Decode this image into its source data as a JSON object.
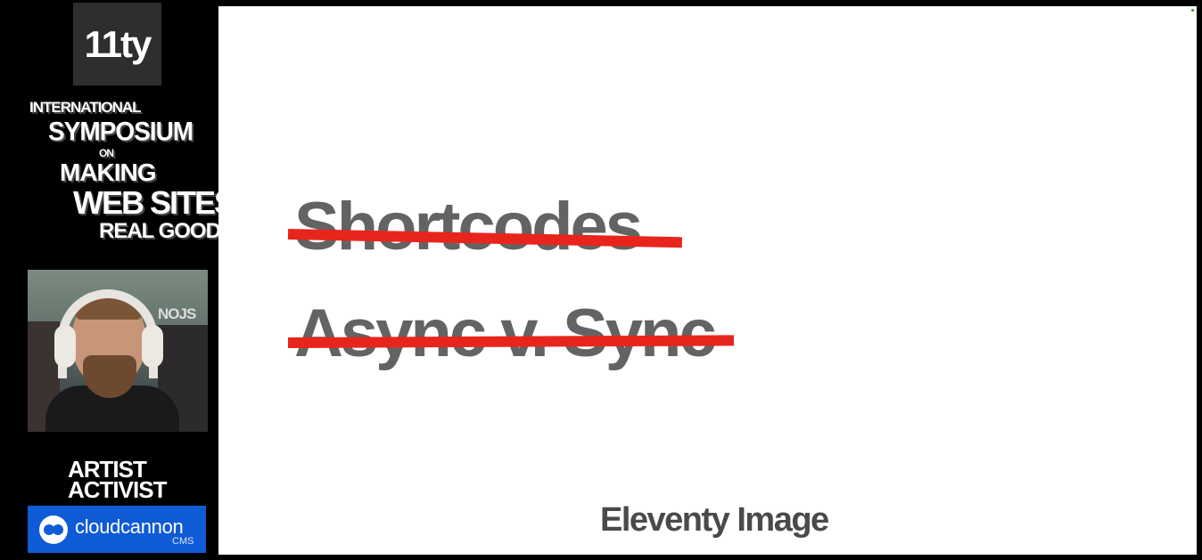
{
  "sidebar": {
    "logo_text": "11ty",
    "symposium": {
      "line1": "INTERNATIONAL",
      "line2": "SYMPOSIUM",
      "line3": "ON",
      "line4": "MAKING",
      "line5": "WEB SITES",
      "line6": "REAL GOOD"
    },
    "webcam": {
      "background_sign": "NOJS"
    },
    "sponsor": {
      "title_line1": "ARTIST",
      "title_line2": "ACTIVIST",
      "brand_name": "cloudcannon",
      "brand_suffix": "CMS",
      "brand_color": "#0f5bd6"
    }
  },
  "slide": {
    "items": [
      {
        "text": "Shortcodes",
        "struck": true
      },
      {
        "text": "Async v. Sync",
        "struck": true
      }
    ],
    "footer": "Eleventy Image",
    "strike_color": "#e8251c",
    "text_color": "#636363"
  }
}
